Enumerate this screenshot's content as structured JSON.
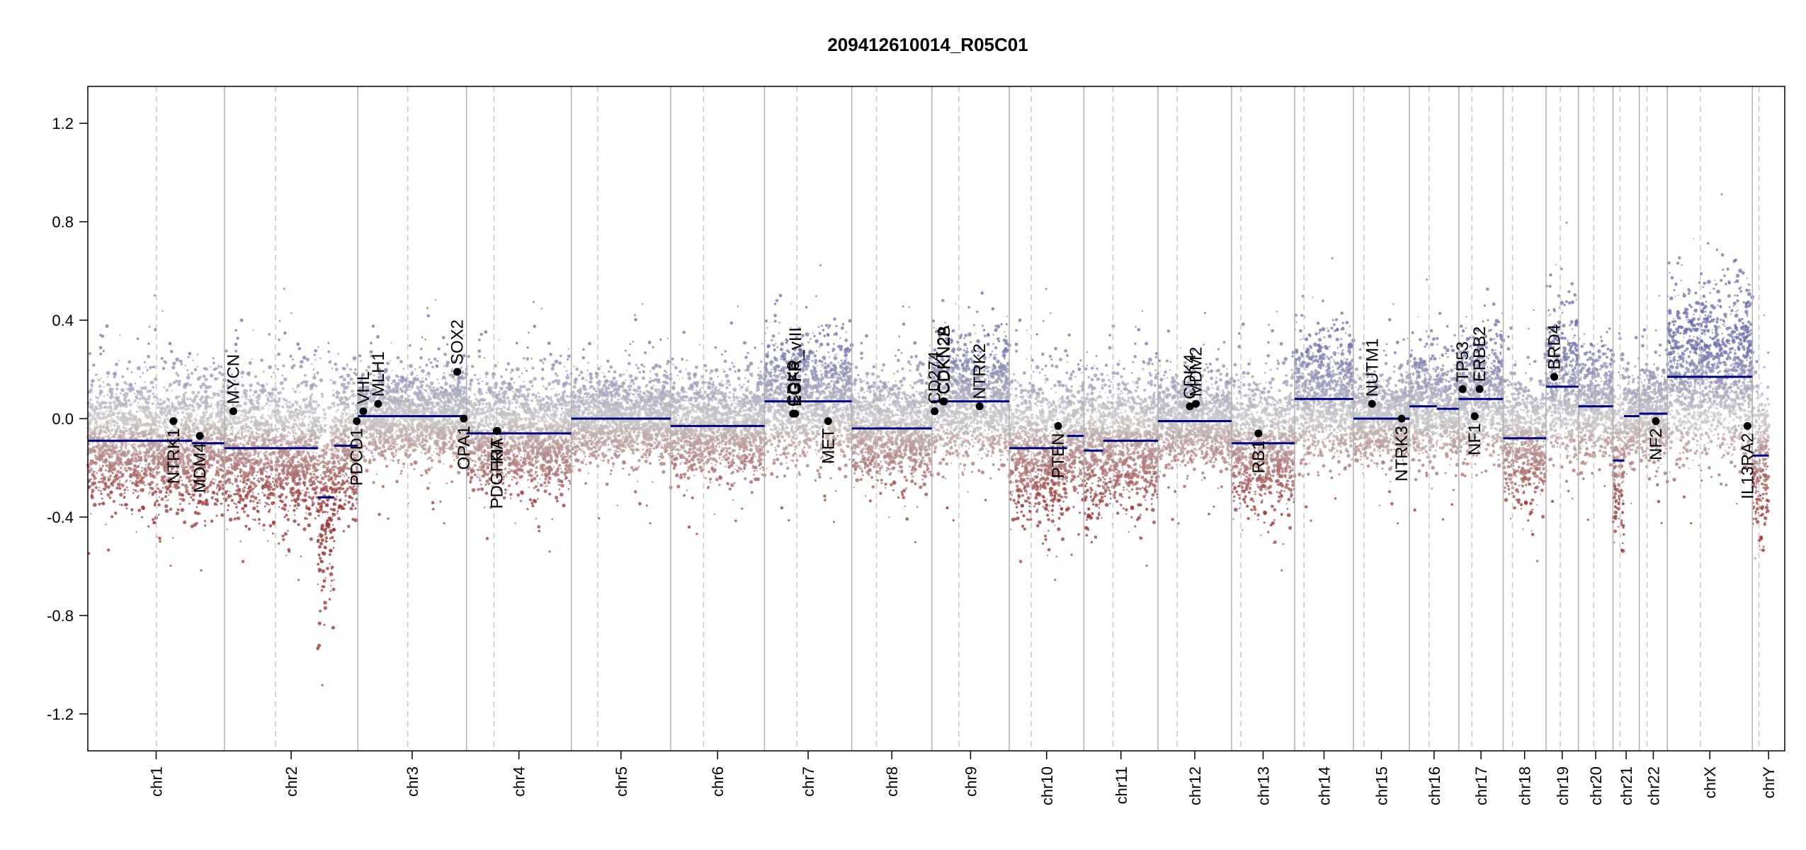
{
  "chart_data": {
    "type": "scatter",
    "title": "209412610014_R05C01",
    "xlabel": "",
    "ylabel": "",
    "ylim": [
      -1.35,
      1.35
    ],
    "yticks": [
      1.2,
      0.8,
      0.4,
      0.0,
      -0.4,
      -0.8,
      -1.2
    ],
    "ytick_labels": [
      "1.2",
      "0.8",
      "0.4",
      "0.0",
      "-0.4",
      "-0.8",
      "-1.2"
    ],
    "grid": false,
    "colors": {
      "gain": "#8888bb",
      "neutral": "#c8c8c8",
      "loss": "#993333",
      "segment": "#000080",
      "gene": "#000000",
      "boundary": "#b0b0b0",
      "centromere": "#c8c8c8"
    },
    "chromosomes": [
      {
        "name": "chr1",
        "length": 249
      },
      {
        "name": "chr2",
        "length": 243
      },
      {
        "name": "chr3",
        "length": 198
      },
      {
        "name": "chr4",
        "length": 191
      },
      {
        "name": "chr5",
        "length": 181
      },
      {
        "name": "chr6",
        "length": 171
      },
      {
        "name": "chr7",
        "length": 159
      },
      {
        "name": "chr8",
        "length": 146
      },
      {
        "name": "chr9",
        "length": 141
      },
      {
        "name": "chr10",
        "length": 136
      },
      {
        "name": "chr11",
        "length": 135
      },
      {
        "name": "chr12",
        "length": 134
      },
      {
        "name": "chr13",
        "length": 115
      },
      {
        "name": "chr14",
        "length": 107
      },
      {
        "name": "chr15",
        "length": 102
      },
      {
        "name": "chr16",
        "length": 90
      },
      {
        "name": "chr17",
        "length": 81
      },
      {
        "name": "chr18",
        "length": 78
      },
      {
        "name": "chr19",
        "length": 59
      },
      {
        "name": "chr20",
        "length": 63
      },
      {
        "name": "chr21",
        "length": 48
      },
      {
        "name": "chr22",
        "length": 51
      },
      {
        "name": "chrX",
        "length": 155
      },
      {
        "name": "chrY",
        "length": 59
      }
    ],
    "centromeres": [
      {
        "chr": "chr1",
        "pos": 125
      },
      {
        "chr": "chr2",
        "pos": 93
      },
      {
        "chr": "chr3",
        "pos": 91
      },
      {
        "chr": "chr4",
        "pos": 50
      },
      {
        "chr": "chr5",
        "pos": 48
      },
      {
        "chr": "chr6",
        "pos": 60
      },
      {
        "chr": "chr7",
        "pos": 59
      },
      {
        "chr": "chr8",
        "pos": 45
      },
      {
        "chr": "chr9",
        "pos": 49
      },
      {
        "chr": "chr10",
        "pos": 40
      },
      {
        "chr": "chr11",
        "pos": 53
      },
      {
        "chr": "chr12",
        "pos": 35
      },
      {
        "chr": "chr13",
        "pos": 17
      },
      {
        "chr": "chr14",
        "pos": 17
      },
      {
        "chr": "chr15",
        "pos": 19
      },
      {
        "chr": "chr16",
        "pos": 36
      },
      {
        "chr": "chr17",
        "pos": 24
      },
      {
        "chr": "chr18",
        "pos": 17
      },
      {
        "chr": "chr19",
        "pos": 26
      },
      {
        "chr": "chr20",
        "pos": 28
      },
      {
        "chr": "chr21",
        "pos": 13
      },
      {
        "chr": "chr22",
        "pos": 14
      },
      {
        "chr": "chrX",
        "pos": 60
      },
      {
        "chr": "chrY",
        "pos": 12
      }
    ],
    "segments": [
      {
        "chr": "chr1",
        "start": 0,
        "end": 190,
        "value": -0.09
      },
      {
        "chr": "chr1",
        "start": 190,
        "end": 249,
        "value": -0.1
      },
      {
        "chr": "chr2",
        "start": 0,
        "end": 170,
        "value": -0.12
      },
      {
        "chr": "chr2",
        "start": 170,
        "end": 200,
        "value": -0.32
      },
      {
        "chr": "chr2",
        "start": 200,
        "end": 243,
        "value": -0.11
      },
      {
        "chr": "chr3",
        "start": 0,
        "end": 198,
        "value": 0.01
      },
      {
        "chr": "chr4",
        "start": 0,
        "end": 191,
        "value": -0.06
      },
      {
        "chr": "chr5",
        "start": 0,
        "end": 181,
        "value": 0.0
      },
      {
        "chr": "chr6",
        "start": 0,
        "end": 171,
        "value": -0.03
      },
      {
        "chr": "chr7",
        "start": 0,
        "end": 159,
        "value": 0.07
      },
      {
        "chr": "chr8",
        "start": 0,
        "end": 146,
        "value": -0.04
      },
      {
        "chr": "chr9",
        "start": 0,
        "end": 141,
        "value": 0.07
      },
      {
        "chr": "chr10",
        "start": 0,
        "end": 105,
        "value": -0.12
      },
      {
        "chr": "chr10",
        "start": 105,
        "end": 136,
        "value": -0.07
      },
      {
        "chr": "chr11",
        "start": 0,
        "end": 35,
        "value": -0.13
      },
      {
        "chr": "chr11",
        "start": 35,
        "end": 135,
        "value": -0.09
      },
      {
        "chr": "chr12",
        "start": 0,
        "end": 134,
        "value": -0.01
      },
      {
        "chr": "chr13",
        "start": 0,
        "end": 115,
        "value": -0.1
      },
      {
        "chr": "chr14",
        "start": 0,
        "end": 107,
        "value": 0.08
      },
      {
        "chr": "chr15",
        "start": 0,
        "end": 102,
        "value": 0.0
      },
      {
        "chr": "chr16",
        "start": 0,
        "end": 50,
        "value": 0.05
      },
      {
        "chr": "chr16",
        "start": 50,
        "end": 90,
        "value": 0.04
      },
      {
        "chr": "chr17",
        "start": 0,
        "end": 81,
        "value": 0.08
      },
      {
        "chr": "chr18",
        "start": 0,
        "end": 78,
        "value": -0.08
      },
      {
        "chr": "chr19",
        "start": 0,
        "end": 59,
        "value": 0.13
      },
      {
        "chr": "chr20",
        "start": 0,
        "end": 63,
        "value": 0.05
      },
      {
        "chr": "chr21",
        "start": 0,
        "end": 20,
        "value": -0.17
      },
      {
        "chr": "chr21",
        "start": 20,
        "end": 48,
        "value": 0.01
      },
      {
        "chr": "chr22",
        "start": 0,
        "end": 51,
        "value": 0.02
      },
      {
        "chr": "chrX",
        "start": 0,
        "end": 155,
        "value": 0.17
      },
      {
        "chr": "chrY",
        "start": 0,
        "end": 30,
        "value": -0.15
      }
    ],
    "genes": [
      {
        "name": "NTRK1",
        "chr": "chr1",
        "pos": 156,
        "value": -0.01
      },
      {
        "name": "MDM4",
        "chr": "chr1",
        "pos": 204,
        "value": -0.07
      },
      {
        "name": "MYCN",
        "chr": "chr2",
        "pos": 16,
        "value": 0.03
      },
      {
        "name": "PDCD1",
        "chr": "chr2",
        "pos": 241,
        "value": -0.01
      },
      {
        "name": "VHL",
        "chr": "chr3",
        "pos": 10,
        "value": 0.03
      },
      {
        "name": "MLH1",
        "chr": "chr3",
        "pos": 37,
        "value": 0.06
      },
      {
        "name": "SOX2",
        "chr": "chr3",
        "pos": 181,
        "value": 0.19
      },
      {
        "name": "OPA1",
        "chr": "chr3",
        "pos": 193,
        "value": 0.0
      },
      {
        "name": "PDGFRA",
        "chr": "chr4",
        "pos": 55,
        "value": -0.05
      },
      {
        "name": "KIT",
        "chr": "chr4",
        "pos": 56,
        "value": -0.05
      },
      {
        "name": "EGFR",
        "chr": "chr7",
        "pos": 55,
        "value": 0.02
      },
      {
        "name": "EGFR_vIII",
        "chr": "chr7",
        "pos": 56,
        "value": 0.02
      },
      {
        "name": "CDK6",
        "chr": "chr7",
        "pos": 52,
        "value": 0.02
      },
      {
        "name": "MET",
        "chr": "chr7",
        "pos": 116,
        "value": -0.01
      },
      {
        "name": "CD274",
        "chr": "chr9",
        "pos": 5,
        "value": 0.03
      },
      {
        "name": "CDKN2A",
        "chr": "chr9",
        "pos": 21,
        "value": 0.07
      },
      {
        "name": "CDKN2B",
        "chr": "chr9",
        "pos": 22,
        "value": 0.07
      },
      {
        "name": "NTRK2",
        "chr": "chr9",
        "pos": 87,
        "value": 0.05
      },
      {
        "name": "PTEN",
        "chr": "chr10",
        "pos": 89,
        "value": -0.03
      },
      {
        "name": "CDK4",
        "chr": "chr12",
        "pos": 58,
        "value": 0.05
      },
      {
        "name": "MDM2",
        "chr": "chr12",
        "pos": 69,
        "value": 0.06
      },
      {
        "name": "RB1",
        "chr": "chr13",
        "pos": 49,
        "value": -0.06
      },
      {
        "name": "NUTM1",
        "chr": "chr15",
        "pos": 34,
        "value": 0.06
      },
      {
        "name": "NTRK3",
        "chr": "chr15",
        "pos": 88,
        "value": 0.0
      },
      {
        "name": "TP53",
        "chr": "chr17",
        "pos": 7,
        "value": 0.12
      },
      {
        "name": "NF1",
        "chr": "chr17",
        "pos": 29,
        "value": 0.01
      },
      {
        "name": "ERBB2",
        "chr": "chr17",
        "pos": 38,
        "value": 0.12
      },
      {
        "name": "BRD4",
        "chr": "chr19",
        "pos": 15,
        "value": 0.17
      },
      {
        "name": "NF2",
        "chr": "chr22",
        "pos": 30,
        "value": -0.01
      },
      {
        "name": "IL13RA2",
        "chr": "chrX",
        "pos": 146,
        "value": -0.03
      }
    ]
  }
}
